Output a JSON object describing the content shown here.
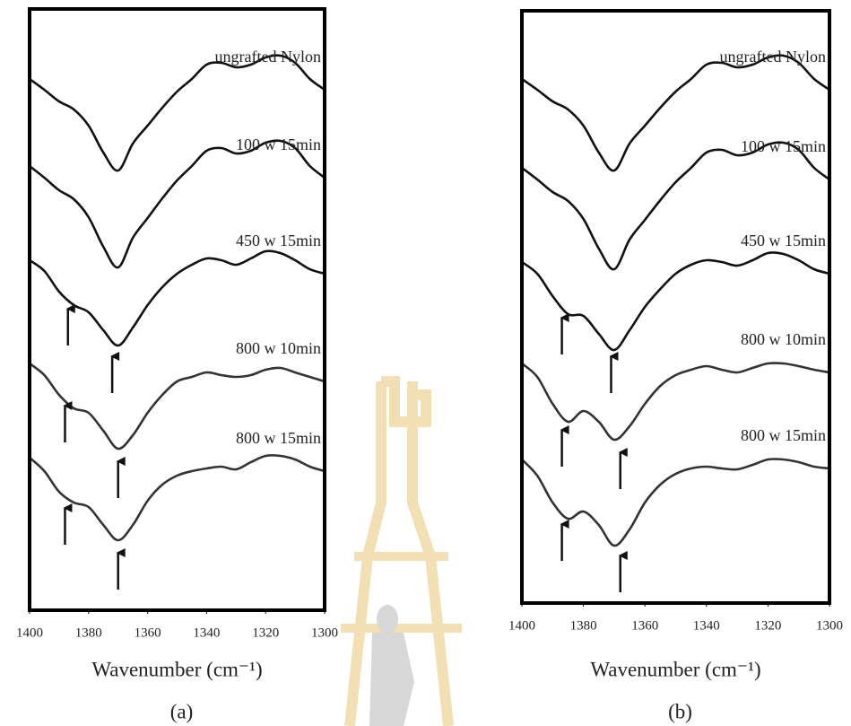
{
  "chart_data": [
    {
      "type": "line",
      "caption": "(a)",
      "xlabel": "Wavenumber (cm⁻¹)",
      "xlim": [
        1400,
        1300
      ],
      "xticks": [
        1400,
        1380,
        1360,
        1340,
        1320,
        1300
      ],
      "ylim": [
        0,
        67
      ],
      "x": [
        1400,
        1395,
        1390,
        1385,
        1380,
        1375,
        1370,
        1365,
        1360,
        1355,
        1350,
        1345,
        1340,
        1335,
        1330,
        1325,
        1320,
        1315,
        1310,
        1305,
        1300
      ],
      "series": [
        {
          "name": "ungrafted Nylon",
          "color": "#111111",
          "values": [
            59.2,
            58,
            56.7,
            55.8,
            54,
            51,
            49,
            52,
            54,
            56,
            57.8,
            59.2,
            60.8,
            61,
            60.5,
            60.8,
            61.6,
            61.8,
            61,
            59.2,
            58
          ]
        },
        {
          "name": "100 w 15min",
          "color": "#111111",
          "values": [
            49.5,
            48.2,
            46.8,
            45.8,
            43.8,
            40.5,
            38.2,
            41.5,
            43.7,
            45.9,
            47.9,
            49.5,
            51.2,
            51.5,
            50.9,
            51.2,
            52.1,
            52.3,
            51.5,
            49.5,
            48.2
          ]
        },
        {
          "name": "450 w 15min",
          "color": "#111111",
          "values": [
            39,
            37.8,
            35.5,
            34,
            33.2,
            31.2,
            29.5,
            31.5,
            34,
            36,
            37.5,
            38.5,
            39.2,
            39,
            38.5,
            39.2,
            40,
            39.8,
            39,
            38,
            37.5
          ]
        },
        {
          "name": "800 w 10min",
          "color": "#333333",
          "values": [
            27.5,
            26.2,
            24,
            22.5,
            22,
            20,
            18,
            19.5,
            22,
            24,
            25.5,
            26,
            26.5,
            26.2,
            26,
            26.2,
            26.8,
            27,
            26.5,
            26,
            25.5
          ]
        },
        {
          "name": "800 w 15min",
          "color": "#333333",
          "values": [
            17,
            15.5,
            13.2,
            12,
            11.5,
            9.5,
            7.8,
            9.5,
            12.2,
            14,
            15,
            15.5,
            15.8,
            16,
            15.7,
            16.5,
            17.2,
            17.2,
            16.8,
            16,
            15.5
          ]
        }
      ],
      "arrows": [
        {
          "x": 1387,
          "y": 34
        },
        {
          "x": 1372,
          "y": 28.7
        },
        {
          "x": 1388,
          "y": 23.2
        },
        {
          "x": 1370,
          "y": 17
        },
        {
          "x": 1388,
          "y": 11.8
        },
        {
          "x": 1370,
          "y": 6.8
        }
      ]
    },
    {
      "type": "line",
      "caption": "(b)",
      "xlabel": "Wavenumber (cm⁻¹)",
      "xlim": [
        1400,
        1300
      ],
      "xticks": [
        1400,
        1380,
        1360,
        1340,
        1320,
        1300
      ],
      "ylim": [
        0,
        66
      ],
      "x": [
        1400,
        1395,
        1390,
        1385,
        1380,
        1375,
        1370,
        1365,
        1360,
        1355,
        1350,
        1345,
        1340,
        1335,
        1330,
        1325,
        1320,
        1315,
        1310,
        1305,
        1300
      ],
      "series": [
        {
          "name": "ungrafted Nylon",
          "color": "#111111",
          "values": [
            58.4,
            57.2,
            55.9,
            55,
            53.2,
            50.2,
            48.2,
            51.2,
            53.2,
            55.2,
            57,
            58.4,
            60,
            60.2,
            59.7,
            60,
            60.8,
            61,
            60.2,
            58.4,
            57.2
          ]
        },
        {
          "name": "100 w 15min",
          "color": "#111111",
          "values": [
            48.5,
            47.2,
            45.8,
            44.8,
            42.8,
            39.5,
            37.2,
            40.5,
            42.7,
            44.9,
            46.9,
            48.5,
            50.2,
            50.5,
            49.9,
            50.2,
            51.1,
            51.3,
            50.5,
            48.5,
            47.2
          ]
        },
        {
          "name": "450 w 15min",
          "color": "#111111",
          "values": [
            38,
            36.7,
            34.2,
            32.2,
            32,
            30,
            28.2,
            30.4,
            33,
            35,
            36.7,
            37.7,
            38.2,
            38,
            37.6,
            38.2,
            39,
            38.9,
            38.2,
            37.2,
            36.7
          ]
        },
        {
          "name": "800 w 10min",
          "color": "#333333",
          "values": [
            26.7,
            25.2,
            22.2,
            20.2,
            21.4,
            20.2,
            18.2,
            19.7,
            22.2,
            24.2,
            25.4,
            26,
            26.4,
            26,
            25.7,
            26.2,
            26.7,
            26.7,
            26.4,
            26,
            25.7
          ]
        },
        {
          "name": "800 w 15min",
          "color": "#333333",
          "values": [
            16,
            14.2,
            11.2,
            9.4,
            10.2,
            8.7,
            6.4,
            8.2,
            11.2,
            13.2,
            14.4,
            15,
            15.2,
            15,
            14.9,
            15.4,
            16,
            16,
            15.7,
            15.2,
            15
          ]
        }
      ],
      "arrows": [
        {
          "x": 1387,
          "y": 32.2
        },
        {
          "x": 1371,
          "y": 27.9
        },
        {
          "x": 1387,
          "y": 19.7
        },
        {
          "x": 1368,
          "y": 17.2
        },
        {
          "x": 1387,
          "y": 9.2
        },
        {
          "x": 1368,
          "y": 5.7
        }
      ]
    }
  ]
}
